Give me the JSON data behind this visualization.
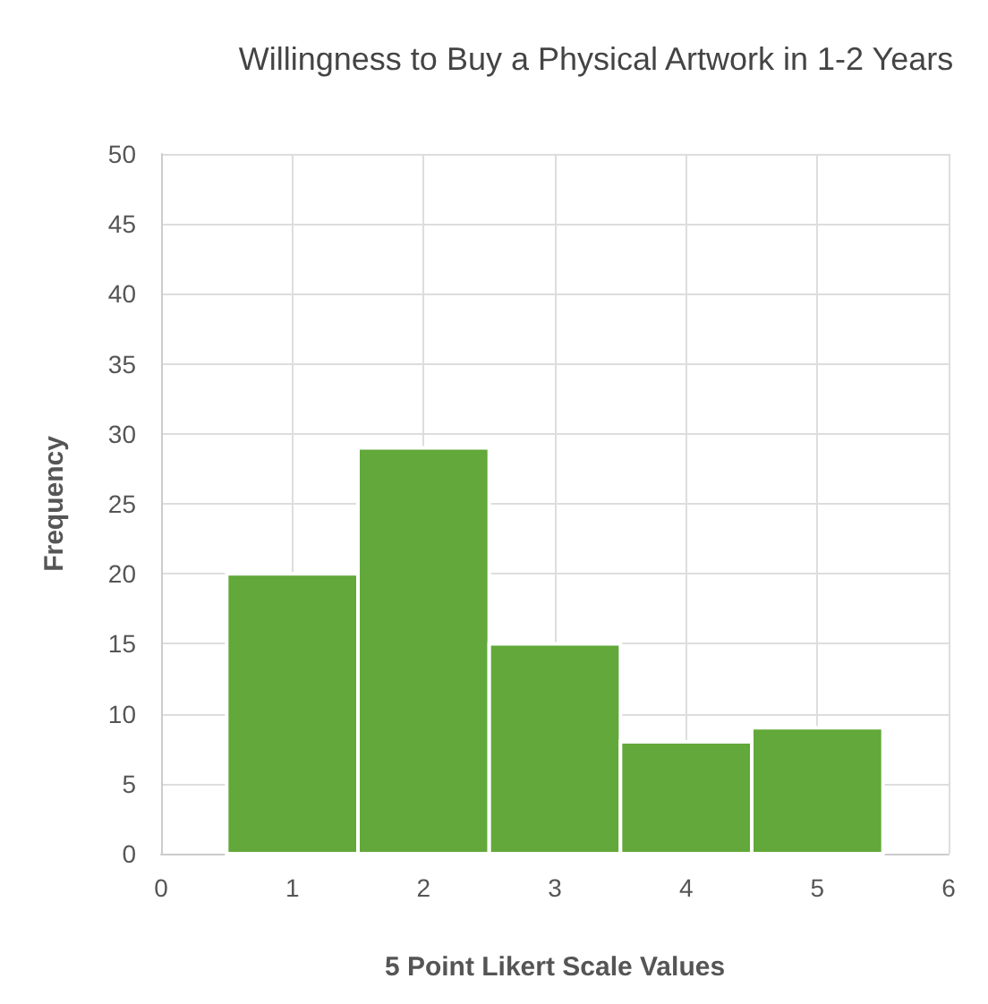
{
  "chart_data": {
    "type": "histogram",
    "title": "Willingness to Buy a Physical Artwork in 1-2 Years",
    "xlabel": "5 Point Likert Scale Values",
    "ylabel": "Frequency",
    "bins": [
      0.5,
      1.5,
      2.5,
      3.5,
      4.5,
      5.5
    ],
    "values": [
      20,
      29,
      15,
      8,
      9
    ],
    "color": "#62a83a",
    "xlim": [
      0,
      6
    ],
    "xticks": [
      0,
      1,
      2,
      3,
      4,
      5,
      6
    ],
    "ylim": [
      0,
      50
    ],
    "yticks": [
      0,
      5,
      10,
      15,
      20,
      25,
      30,
      35,
      40,
      45,
      50
    ],
    "grid": true
  }
}
